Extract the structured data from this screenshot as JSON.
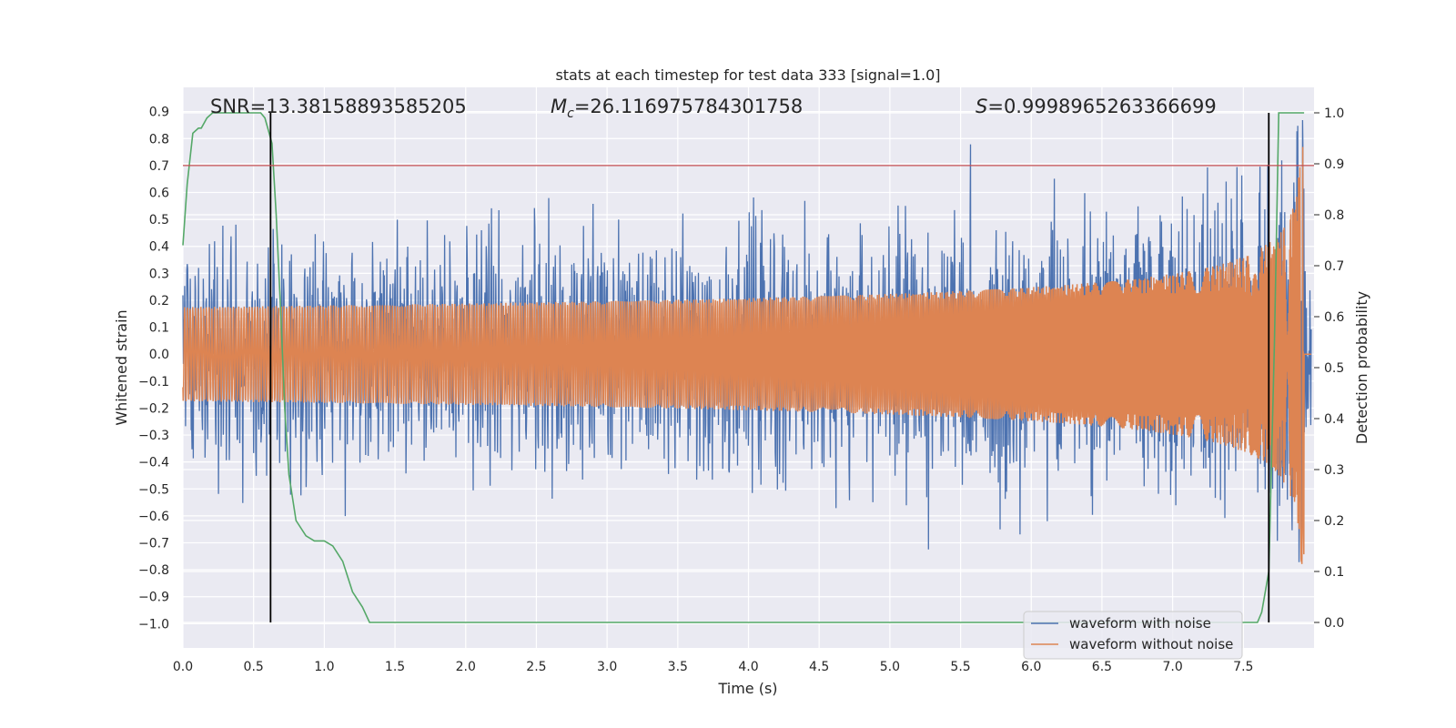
{
  "chart_data": {
    "type": "line",
    "title": "stats at each timestep for test data 333 [signal=1.0]",
    "xlabel": "Time (s)",
    "ylabel": "Whitened strain",
    "ylabel_right": "Detection probability",
    "xlim": [
      0.0,
      8.0
    ],
    "ylim": [
      -1.09,
      0.99
    ],
    "ylim_right": [
      -0.05,
      1.05
    ],
    "grid": true,
    "x_ticks": [
      "0.0",
      "0.5",
      "1.0",
      "1.5",
      "2.0",
      "2.5",
      "3.0",
      "3.5",
      "4.0",
      "4.5",
      "5.0",
      "5.5",
      "6.0",
      "6.5",
      "7.0",
      "7.5"
    ],
    "y_ticks": [
      "0.9",
      "0.8",
      "0.7",
      "0.6",
      "0.5",
      "0.4",
      "0.3",
      "0.2",
      "0.1",
      "0.0",
      "−0.1",
      "−0.2",
      "−0.3",
      "−0.4",
      "−0.5",
      "−0.6",
      "−0.7",
      "−0.8",
      "−0.9",
      "−1.0"
    ],
    "y_ticks_right": [
      "1.0",
      "0.9",
      "0.8",
      "0.7",
      "0.6",
      "0.5",
      "0.4",
      "0.3",
      "0.2",
      "0.1",
      "0.0"
    ],
    "annotations": {
      "snr": "SNR=13.38158893585205",
      "mc_symbol": "M",
      "mc_sub": "c",
      "mc_value": "=26.116975784301758",
      "s_symbol": "S",
      "s_value": "=0.9998965263366699"
    },
    "threshold": {
      "y": 0.7,
      "color": "#c44e52"
    },
    "vertical_markers": [
      0.62,
      7.68
    ],
    "series": [
      {
        "name": "waveform with noise",
        "color": "#4c72b0",
        "axis": "left",
        "noise_amplitude": 0.3,
        "max_value": 0.9,
        "min_value": -1.0
      },
      {
        "name": "waveform without noise",
        "color": "#dd8452",
        "axis": "left",
        "chirp_peak": 0.78,
        "merger_time": 7.93
      },
      {
        "name": "Detection probability",
        "color": "#55a868",
        "axis": "right",
        "x": [
          0.0,
          0.03,
          0.07,
          0.11,
          0.13,
          0.17,
          0.21,
          0.25,
          0.3,
          0.35,
          0.4,
          0.45,
          0.5,
          0.55,
          0.58,
          0.61,
          0.63,
          0.66,
          0.69,
          0.72,
          0.75,
          0.8,
          0.87,
          0.93,
          1.0,
          1.06,
          1.13,
          1.2,
          1.27,
          1.32,
          1.4,
          1.5,
          2.0,
          3.0,
          4.0,
          5.0,
          6.0,
          6.5,
          7.0,
          7.3,
          7.5,
          7.6,
          7.63,
          7.68,
          7.72,
          7.75,
          7.8,
          7.85,
          7.9,
          7.93
        ],
        "y": [
          0.74,
          0.86,
          0.96,
          0.97,
          0.97,
          0.99,
          1.0,
          1.0,
          1.0,
          1.0,
          1.0,
          1.0,
          1.0,
          1.0,
          0.99,
          0.96,
          0.94,
          0.8,
          0.62,
          0.42,
          0.29,
          0.2,
          0.17,
          0.16,
          0.16,
          0.15,
          0.12,
          0.06,
          0.03,
          0.0,
          0.0,
          0.0,
          0.0,
          0.0,
          0.0,
          0.0,
          0.0,
          0.0,
          0.0,
          0.0,
          0.0,
          0.0,
          0.02,
          0.1,
          0.55,
          1.0,
          1.0,
          1.0,
          1.0,
          1.0
        ]
      }
    ],
    "legend": {
      "position": "lower-right",
      "entries": [
        "waveform with noise",
        "waveform without noise"
      ]
    }
  }
}
